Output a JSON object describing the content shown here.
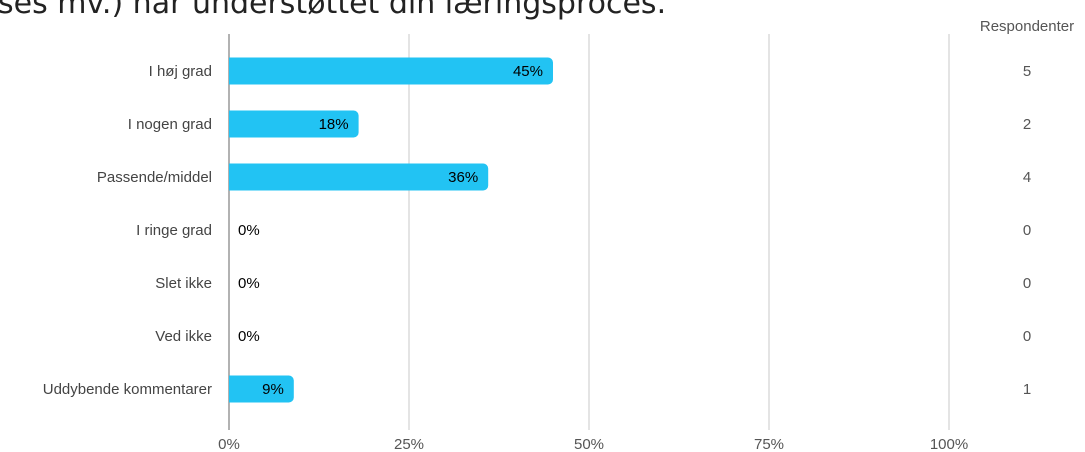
{
  "title": "ses mv.) har understøttet din læringsproces.",
  "chart_data": {
    "type": "bar",
    "orientation": "horizontal",
    "categories": [
      "I høj grad",
      "I nogen grad",
      "Passende/middel",
      "I ringe grad",
      "Slet ikke",
      "Ved ikke",
      "Uddybende kommentarer"
    ],
    "values": [
      45,
      18,
      36,
      0,
      0,
      0,
      9
    ],
    "value_labels": [
      "45%",
      "18%",
      "36%",
      "0%",
      "0%",
      "0%",
      "9%"
    ],
    "respondents_header": "Respondenter",
    "respondents": [
      5,
      2,
      4,
      0,
      0,
      0,
      1
    ],
    "xlim": [
      0,
      100
    ],
    "xticks": [
      "0%",
      "25%",
      "50%",
      "75%",
      "100%"
    ],
    "grid": true,
    "bar_color": "#22c3f3"
  }
}
